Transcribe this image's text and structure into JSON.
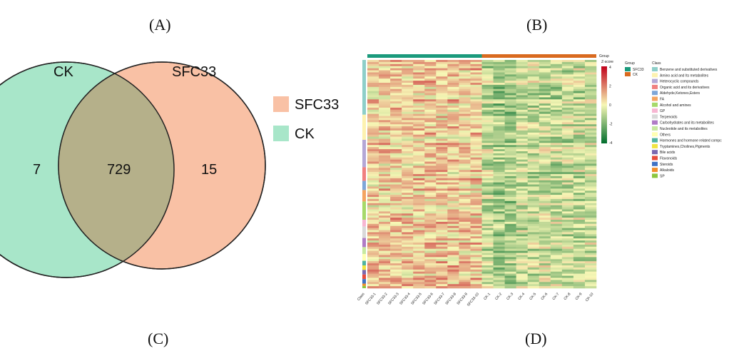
{
  "panel_labels": {
    "a": "(A)",
    "b": "(B)",
    "c": "(C)",
    "d": "(D)"
  },
  "chart_data": [
    {
      "type": "venn",
      "sets": [
        {
          "name": "CK",
          "color": "#a8e6c9"
        },
        {
          "name": "SFC33",
          "color": "#f9c1a5"
        }
      ],
      "counts": {
        "ck_only": 7,
        "intersection": 729,
        "sfc33_only": 15
      },
      "legend": [
        {
          "label": "SFC33",
          "color": "#f9c1a5"
        },
        {
          "label": "CK",
          "color": "#a8e6c9"
        }
      ],
      "intersection_color": "#b5b08a"
    },
    {
      "type": "heatmap",
      "samples": [
        "SFC33-1",
        "SFC33-2",
        "SFC33-3",
        "SFC33-4",
        "SFC33-5",
        "SFC33-6",
        "SFC33-7",
        "SFC33-8",
        "SFC33-9",
        "SFC33-10",
        "CK-1",
        "CK-2",
        "CK-3",
        "CK-4",
        "CK-5",
        "CK-6",
        "CK-7",
        "CK-8",
        "CK-9",
        "CK-10"
      ],
      "class_axis_label": "Class",
      "group_track_label": "Group",
      "zscore": {
        "title": "Z-score",
        "ticks": [
          "4",
          "2",
          "0",
          "-2",
          "-4"
        ],
        "range": [
          -4,
          4
        ],
        "colors": [
          "#006d2c",
          "#f7f7b5",
          "#c0001b"
        ]
      },
      "groups": [
        {
          "name": "SFC33",
          "color": "#1a9a7c"
        },
        {
          "name": "CK",
          "color": "#d96a1f"
        }
      ],
      "group_legend_title": "Group",
      "class_legend_title": "Class",
      "classes": [
        {
          "name": "Benzene and substituted derivatives",
          "color": "#8ecfc9"
        },
        {
          "name": "Amino acid and Its metabolites",
          "color": "#fdf2b0"
        },
        {
          "name": "Heterocyclic compounds",
          "color": "#b4a7d6"
        },
        {
          "name": "Organic acid and its derivatives",
          "color": "#f08080"
        },
        {
          "name": "Aldehyde,Ketones,Esters",
          "color": "#7ea6d8"
        },
        {
          "name": "FA",
          "color": "#f4a460"
        },
        {
          "name": "Alcohol and amines",
          "color": "#a6d96a"
        },
        {
          "name": "GP",
          "color": "#f7b6d2"
        },
        {
          "name": "Terpenoids",
          "color": "#d9d9d9"
        },
        {
          "name": "Carbohydrates and its metabolites",
          "color": "#b07cc6"
        },
        {
          "name": "Nucleotide and its metabolites",
          "color": "#c7e9a0"
        },
        {
          "name": "Others",
          "color": "#ffffb3"
        },
        {
          "name": "Hormones and hormone related compc",
          "color": "#4fb3a0"
        },
        {
          "name": "Tryptamines,Cholines,Pigments",
          "color": "#f0e442"
        },
        {
          "name": "Bile acids",
          "color": "#7b68b0"
        },
        {
          "name": "Flavonoids",
          "color": "#e74c3c"
        },
        {
          "name": "Steroids",
          "color": "#3f72c4"
        },
        {
          "name": "Alkaloids",
          "color": "#f28e2b"
        },
        {
          "name": "SP",
          "color": "#8cc63f"
        }
      ]
    }
  ]
}
